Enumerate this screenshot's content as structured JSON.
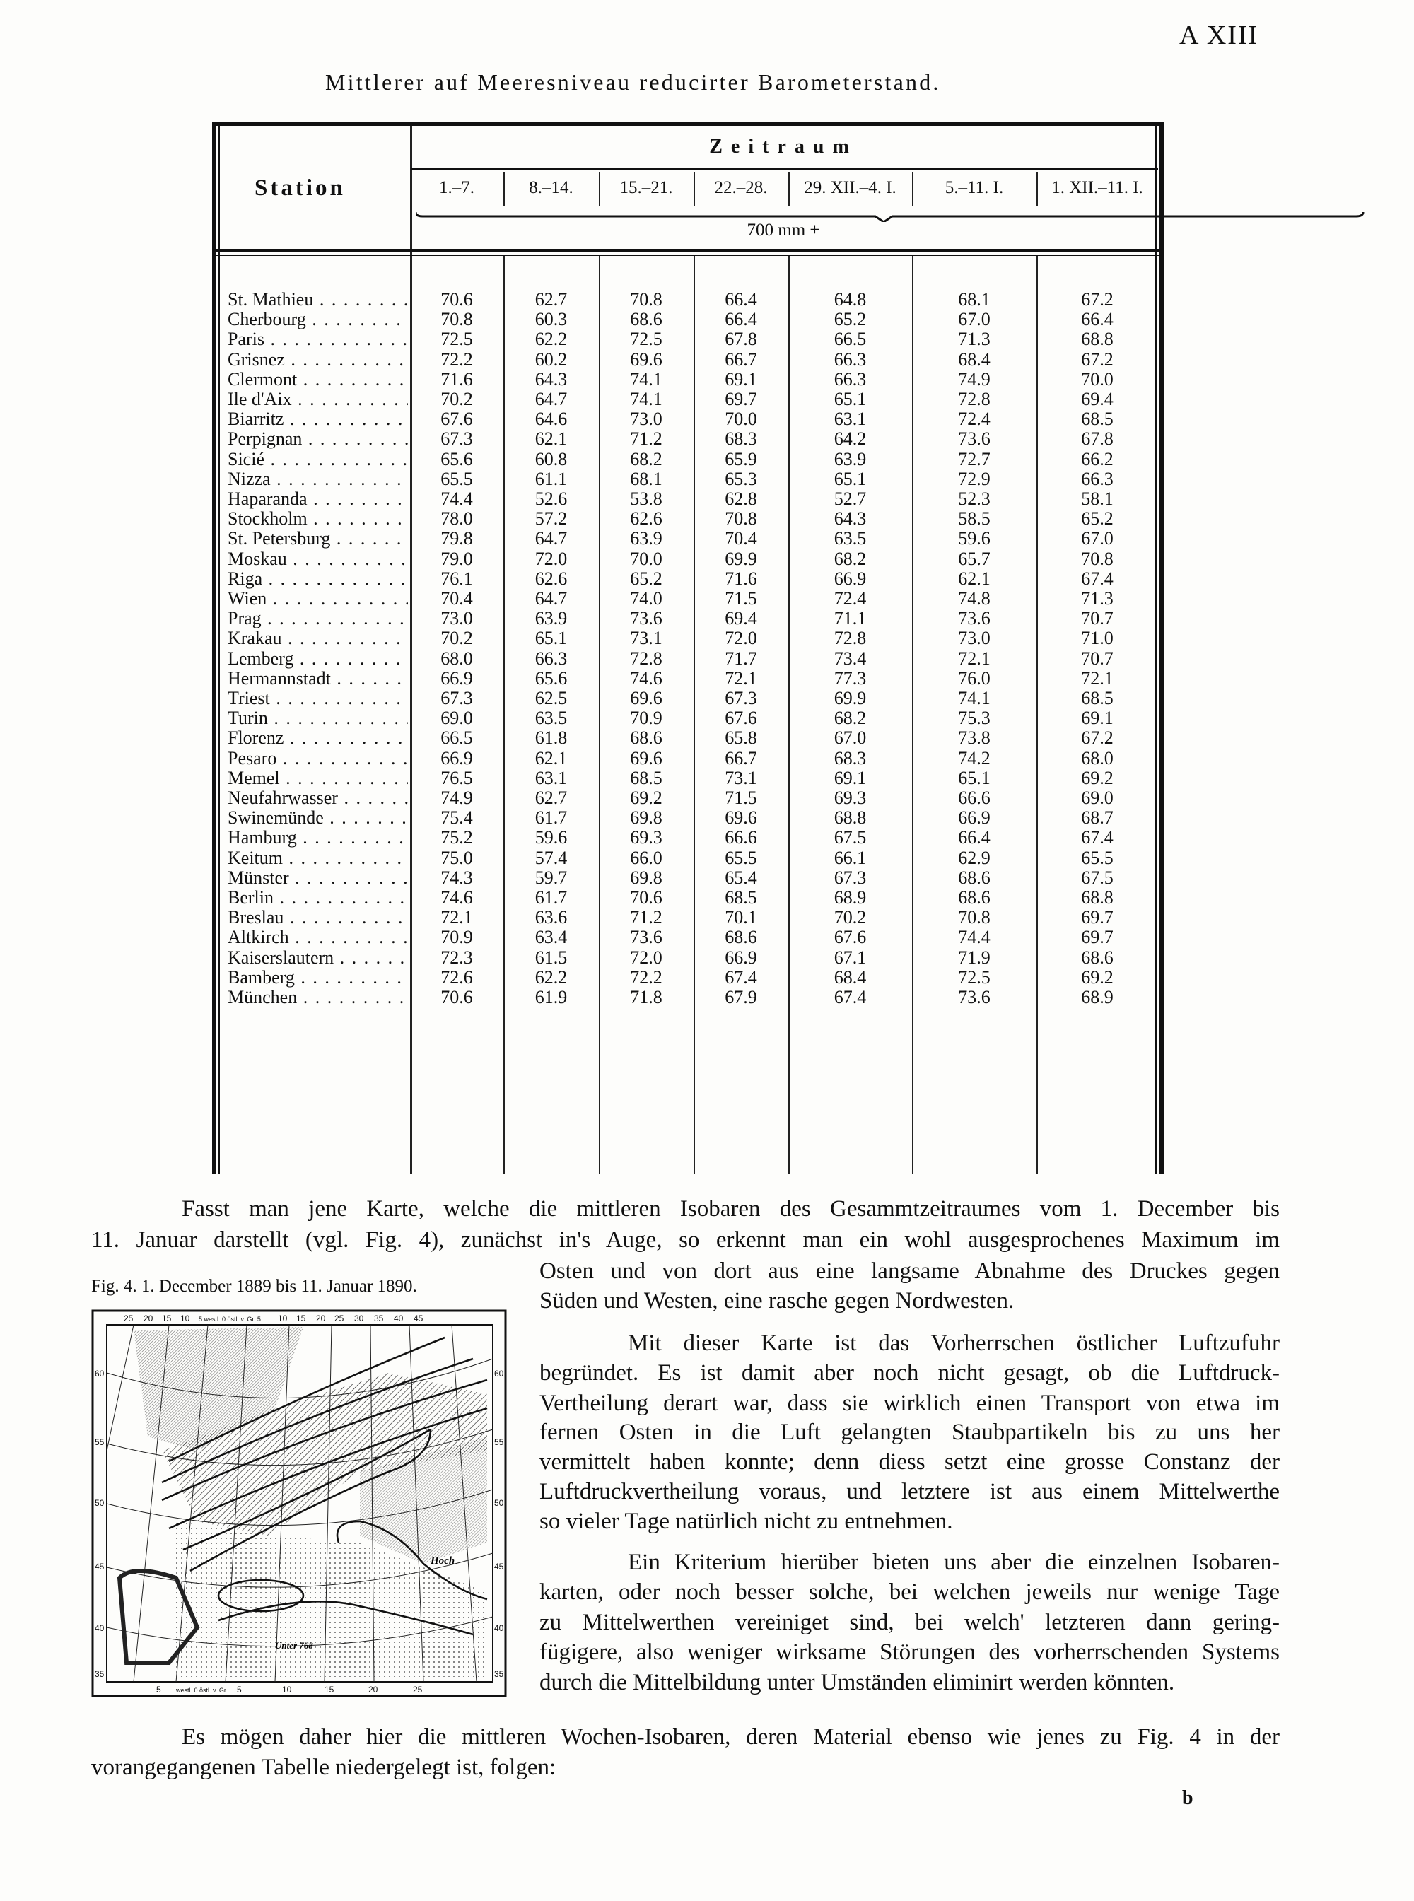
{
  "page_number": "A XIII",
  "table": {
    "title": "Mittlerer auf Meeresniveau reducirter Barometerstand.",
    "station_header": "Station",
    "period_header": "Zeitraum",
    "unit": "700 mm +",
    "columns": [
      "1.–7.",
      "8.–14.",
      "15.–21.",
      "22.–28.",
      "29. XII.–4. I.",
      "5.–11. I.",
      "1. XII.–11. I."
    ],
    "rows": [
      {
        "station": "St. Mathieu",
        "values": [
          "70.6",
          "62.7",
          "70.8",
          "66.4",
          "64.8",
          "68.1",
          "67.2"
        ]
      },
      {
        "station": "Cherbourg",
        "values": [
          "70.8",
          "60.3",
          "68.6",
          "66.4",
          "65.2",
          "67.0",
          "66.4"
        ]
      },
      {
        "station": "Paris",
        "values": [
          "72.5",
          "62.2",
          "72.5",
          "67.8",
          "66.5",
          "71.3",
          "68.8"
        ]
      },
      {
        "station": "Grisnez",
        "values": [
          "72.2",
          "60.2",
          "69.6",
          "66.7",
          "66.3",
          "68.4",
          "67.2"
        ]
      },
      {
        "station": "Clermont",
        "values": [
          "71.6",
          "64.3",
          "74.1",
          "69.1",
          "66.3",
          "74.9",
          "70.0"
        ]
      },
      {
        "station": "Ile d'Aix",
        "values": [
          "70.2",
          "64.7",
          "74.1",
          "69.7",
          "65.1",
          "72.8",
          "69.4"
        ]
      },
      {
        "station": "Biarritz",
        "values": [
          "67.6",
          "64.6",
          "73.0",
          "70.0",
          "63.1",
          "72.4",
          "68.5"
        ]
      },
      {
        "station": "Perpignan",
        "values": [
          "67.3",
          "62.1",
          "71.2",
          "68.3",
          "64.2",
          "73.6",
          "67.8"
        ]
      },
      {
        "station": "Sicié",
        "values": [
          "65.6",
          "60.8",
          "68.2",
          "65.9",
          "63.9",
          "72.7",
          "66.2"
        ]
      },
      {
        "station": "Nizza",
        "values": [
          "65.5",
          "61.1",
          "68.1",
          "65.3",
          "65.1",
          "72.9",
          "66.3"
        ]
      },
      {
        "station": "Haparanda",
        "values": [
          "74.4",
          "52.6",
          "53.8",
          "62.8",
          "52.7",
          "52.3",
          "58.1"
        ]
      },
      {
        "station": "Stockholm",
        "values": [
          "78.0",
          "57.2",
          "62.6",
          "70.8",
          "64.3",
          "58.5",
          "65.2"
        ]
      },
      {
        "station": "St. Petersburg",
        "values": [
          "79.8",
          "64.7",
          "63.9",
          "70.4",
          "63.5",
          "59.6",
          "67.0"
        ]
      },
      {
        "station": "Moskau",
        "values": [
          "79.0",
          "72.0",
          "70.0",
          "69.9",
          "68.2",
          "65.7",
          "70.8"
        ]
      },
      {
        "station": "Riga",
        "values": [
          "76.1",
          "62.6",
          "65.2",
          "71.6",
          "66.9",
          "62.1",
          "67.4"
        ]
      },
      {
        "station": "Wien",
        "values": [
          "70.4",
          "64.7",
          "74.0",
          "71.5",
          "72.4",
          "74.8",
          "71.3"
        ]
      },
      {
        "station": "Prag",
        "values": [
          "73.0",
          "63.9",
          "73.6",
          "69.4",
          "71.1",
          "73.6",
          "70.7"
        ]
      },
      {
        "station": "Krakau",
        "values": [
          "70.2",
          "65.1",
          "73.1",
          "72.0",
          "72.8",
          "73.0",
          "71.0"
        ]
      },
      {
        "station": "Lemberg",
        "values": [
          "68.0",
          "66.3",
          "72.8",
          "71.7",
          "73.4",
          "72.1",
          "70.7"
        ]
      },
      {
        "station": "Hermannstadt",
        "values": [
          "66.9",
          "65.6",
          "74.6",
          "72.1",
          "77.3",
          "76.0",
          "72.1"
        ]
      },
      {
        "station": "Triest",
        "values": [
          "67.3",
          "62.5",
          "69.6",
          "67.3",
          "69.9",
          "74.1",
          "68.5"
        ]
      },
      {
        "station": "Turin",
        "values": [
          "69.0",
          "63.5",
          "70.9",
          "67.6",
          "68.2",
          "75.3",
          "69.1"
        ]
      },
      {
        "station": "Florenz",
        "values": [
          "66.5",
          "61.8",
          "68.6",
          "65.8",
          "67.0",
          "73.8",
          "67.2"
        ]
      },
      {
        "station": "Pesaro",
        "values": [
          "66.9",
          "62.1",
          "69.6",
          "66.7",
          "68.3",
          "74.2",
          "68.0"
        ]
      },
      {
        "station": "Memel",
        "values": [
          "76.5",
          "63.1",
          "68.5",
          "73.1",
          "69.1",
          "65.1",
          "69.2"
        ]
      },
      {
        "station": "Neufahrwasser",
        "values": [
          "74.9",
          "62.7",
          "69.2",
          "71.5",
          "69.3",
          "66.6",
          "69.0"
        ]
      },
      {
        "station": "Swinemünde",
        "values": [
          "75.4",
          "61.7",
          "69.8",
          "69.6",
          "68.8",
          "66.9",
          "68.7"
        ]
      },
      {
        "station": "Hamburg",
        "values": [
          "75.2",
          "59.6",
          "69.3",
          "66.6",
          "67.5",
          "66.4",
          "67.4"
        ]
      },
      {
        "station": "Keitum",
        "values": [
          "75.0",
          "57.4",
          "66.0",
          "65.5",
          "66.1",
          "62.9",
          "65.5"
        ]
      },
      {
        "station": "Münster",
        "values": [
          "74.3",
          "59.7",
          "69.8",
          "65.4",
          "67.3",
          "68.6",
          "67.5"
        ]
      },
      {
        "station": "Berlin",
        "values": [
          "74.6",
          "61.7",
          "70.6",
          "68.5",
          "68.9",
          "68.6",
          "68.8"
        ]
      },
      {
        "station": "Breslau",
        "values": [
          "72.1",
          "63.6",
          "71.2",
          "70.1",
          "70.2",
          "70.8",
          "69.7"
        ]
      },
      {
        "station": "Altkirch",
        "values": [
          "70.9",
          "63.4",
          "73.6",
          "68.6",
          "67.6",
          "74.4",
          "69.7"
        ]
      },
      {
        "station": "Kaiserslautern",
        "values": [
          "72.3",
          "61.5",
          "72.0",
          "66.9",
          "67.1",
          "71.9",
          "68.6"
        ]
      },
      {
        "station": "Bamberg",
        "values": [
          "72.6",
          "62.2",
          "72.2",
          "67.4",
          "68.4",
          "72.5",
          "69.2"
        ]
      },
      {
        "station": "München",
        "values": [
          "70.6",
          "61.9",
          "71.8",
          "67.9",
          "67.4",
          "73.6",
          "68.9"
        ]
      }
    ]
  },
  "text": {
    "para1": [
      "Fasst man jene Karte, welche die mittleren Isobaren des Gesammtzeitraumes vom 1. December bis",
      "11. Januar darstellt (vgl. Fig. 4), zunächst in's Auge, so erkennt man ein wohl ausgesprochenes Maximum im",
      "Osten und von dort aus eine langsame Abnahme des Druckes gegen",
      "Süden und Westen, eine rasche gegen Nordwesten."
    ],
    "para2": [
      "Mit dieser Karte ist das Vorherrschen östlicher Luftzufuhr",
      "begründet. Es ist damit aber noch nicht gesagt, ob die Luftdruck-",
      "Vertheilung derart war, dass sie wirklich einen Transport von etwa im",
      "fernen Osten in die Luft gelangten Staubpartikeln bis zu uns her",
      "vermittelt haben konnte; denn diess setzt eine grosse Constanz der",
      "Luftdruckvertheilung voraus, und letztere ist aus einem Mittelwerthe",
      "so vieler Tage natürlich nicht zu entnehmen."
    ],
    "para3": [
      "Ein Kriterium hierüber bieten uns aber die einzelnen Isobaren-",
      "karten, oder noch besser solche, bei welchen jeweils nur wenige Tage",
      "zu Mittelwerthen vereiniget sind, bei welch' letzteren dann gering-",
      "fügigere, also weniger wirksame Störungen des vorherrschenden Systems",
      "durch die Mittelbildung unter Umständen eliminirt werden könnten."
    ],
    "para4": [
      "Es mögen daher hier die mittleren Wochen-Isobaren, deren Material ebenso wie jenes zu Fig. 4 in der",
      "vorangegangenen Tabelle niedergelegt ist, folgen:"
    ],
    "signature": "b"
  },
  "figure": {
    "caption": "Fig. 4. 1. December 1889 bis 11. Januar 1890.",
    "top_ticks": [
      "25",
      "20",
      "15",
      "10",
      "5 westl. 0 östl. v. Gr. 5",
      "10",
      "15",
      "20",
      "25",
      "30",
      "35",
      "40",
      "45"
    ],
    "side_ticks": [
      "60",
      "55",
      "50",
      "45",
      "40",
      "35"
    ],
    "bottom_ticks": [
      "5",
      "westl. 0 östl. v. Gr.",
      "5",
      "10",
      "15",
      "20",
      "25"
    ],
    "labels": {
      "high": "Hoch",
      "low": "Unter 768"
    }
  }
}
